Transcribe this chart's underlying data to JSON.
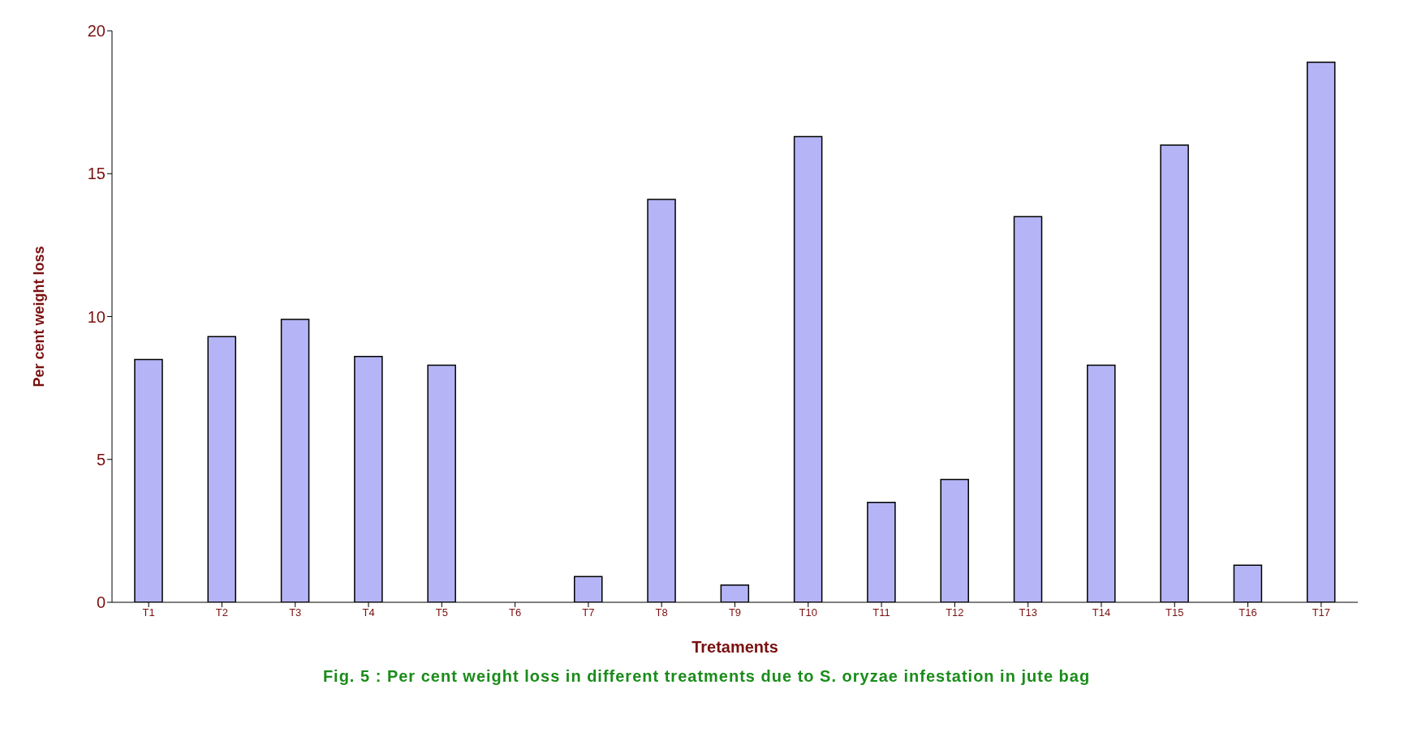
{
  "chart_data": {
    "type": "bar",
    "title": "Fig. 5 : Per cent weight loss in different treatments due to S. oryzae infestation in jute bag",
    "xlabel": "Tretaments",
    "ylabel": "Per cent weight loss",
    "categories": [
      "T1",
      "T2",
      "T3",
      "T4",
      "T5",
      "T6",
      "T7",
      "T8",
      "T9",
      "T10",
      "T11",
      "T12",
      "T13",
      "T14",
      "T15",
      "T16",
      "T17"
    ],
    "values": [
      8.5,
      9.3,
      9.9,
      8.6,
      8.3,
      0,
      0.9,
      14.1,
      0.6,
      16.3,
      3.5,
      4.3,
      13.5,
      8.3,
      16.0,
      1.3,
      18.9
    ],
    "color": "#b4b4f6",
    "ylim": [
      0,
      20
    ],
    "yticks": [
      0,
      5,
      10,
      15,
      20
    ],
    "grid": false,
    "legend": false
  }
}
